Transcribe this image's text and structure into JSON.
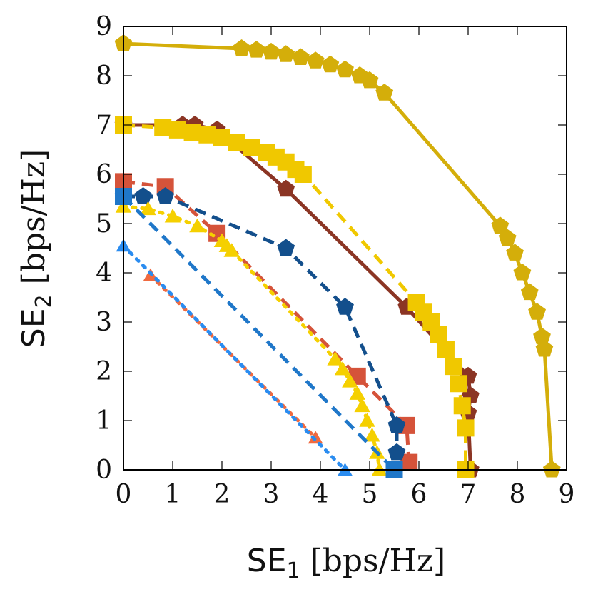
{
  "chart_data": {
    "type": "line",
    "title": "",
    "xlabel": {
      "main": "SE",
      "sub": "1",
      "unit": " [bps/Hz]"
    },
    "ylabel": {
      "main": "SE",
      "sub": "2",
      "unit": " [bps/Hz]"
    },
    "xlim": [
      0,
      9
    ],
    "ylim": [
      0,
      9
    ],
    "xticks": [
      "0",
      "1",
      "2",
      "3",
      "4",
      "5",
      "6",
      "7",
      "8",
      "9"
    ],
    "yticks": [
      "0",
      "1",
      "2",
      "3",
      "4",
      "5",
      "6",
      "7",
      "8",
      "9"
    ],
    "grid": false,
    "legend": "none",
    "series": [
      {
        "color": "#d4ae0a",
        "dash": "solid",
        "marker": "pentagon",
        "size": 13,
        "x": [
          0,
          2.4,
          2.7,
          3.0,
          3.3,
          3.6,
          3.9,
          4.2,
          4.5,
          4.8,
          5.0,
          5.3,
          7.65,
          7.8,
          7.95,
          8.1,
          8.25,
          8.4,
          8.5,
          8.55,
          8.7
        ],
        "y": [
          8.65,
          8.55,
          8.52,
          8.48,
          8.43,
          8.37,
          8.3,
          8.22,
          8.12,
          8.0,
          7.9,
          7.65,
          4.95,
          4.7,
          4.4,
          4.0,
          3.6,
          3.2,
          2.7,
          2.45,
          0
        ]
      },
      {
        "color": "#8b3524",
        "dash": "solid",
        "marker": "pentagon",
        "size": 13,
        "x": [
          0,
          1.2,
          1.45,
          1.9,
          3.3,
          5.75,
          7.0,
          7.05,
          7.0,
          7.05
        ],
        "y": [
          7.0,
          7.0,
          7.0,
          6.9,
          5.7,
          3.3,
          1.9,
          1.5,
          1.15,
          0
        ]
      },
      {
        "color": "#f0c800",
        "dash": "dash",
        "marker": "square",
        "size": 12,
        "x": [
          0,
          0.8,
          1.1,
          1.4,
          1.7,
          2.0,
          2.3,
          2.6,
          2.9,
          3.1,
          3.3,
          3.5,
          3.65,
          5.95,
          6.1,
          6.25,
          6.4,
          6.55,
          6.7,
          6.8,
          6.88,
          6.95,
          6.95
        ],
        "y": [
          7.0,
          6.95,
          6.9,
          6.85,
          6.8,
          6.75,
          6.65,
          6.55,
          6.45,
          6.35,
          6.25,
          6.1,
          6.0,
          3.4,
          3.2,
          3.0,
          2.75,
          2.45,
          2.1,
          1.75,
          1.3,
          0.85,
          0
        ]
      },
      {
        "color": "#d5533a",
        "dash": "dash",
        "marker": "square",
        "size": 12,
        "x": [
          0,
          0.85,
          1.9,
          4.75,
          5.75,
          5.8
        ],
        "y": [
          5.85,
          5.75,
          4.8,
          1.9,
          0.9,
          0.15
        ]
      },
      {
        "color": "#134f8c",
        "dash": "dash",
        "marker": "pentagon",
        "size": 13,
        "x": [
          0,
          0.4,
          0.85,
          3.3,
          4.5,
          5.55,
          5.55
        ],
        "y": [
          5.55,
          5.55,
          5.55,
          4.5,
          3.3,
          0.9,
          0.35
        ]
      },
      {
        "color": "#f5d000",
        "dash": "dot",
        "marker": "triangle",
        "size": 13,
        "x": [
          0,
          0.5,
          1.0,
          1.5,
          2.0,
          2.1,
          2.2,
          4.3,
          4.45,
          4.6,
          4.75,
          4.85,
          4.95,
          5.05,
          5.15,
          5.2
        ],
        "y": [
          5.35,
          5.3,
          5.15,
          4.95,
          4.65,
          4.55,
          4.45,
          2.25,
          2.05,
          1.8,
          1.55,
          1.3,
          1.0,
          0.7,
          0.35,
          0
        ]
      },
      {
        "color": "#1f77c9",
        "dash": "dash",
        "marker": "square",
        "size": 12,
        "x": [
          0,
          5.5
        ],
        "y": [
          5.55,
          0
        ]
      },
      {
        "color": "#f06a40",
        "dash": "dot",
        "marker": "triangle",
        "size": 12,
        "x": [
          0.55,
          3.9
        ],
        "y": [
          3.95,
          0.65
        ]
      },
      {
        "color": "#2a8cf0",
        "dash": "dot",
        "marker": "triangle",
        "size": 12,
        "x": [
          0,
          4.5
        ],
        "y": [
          4.55,
          0
        ]
      }
    ]
  }
}
